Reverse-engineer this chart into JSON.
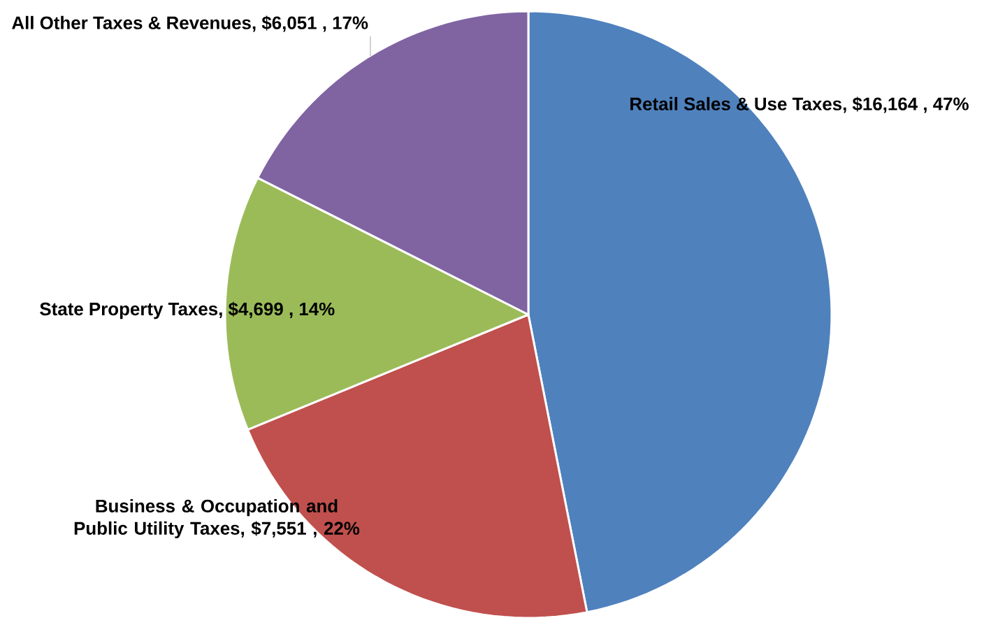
{
  "chart_data": {
    "type": "pie",
    "categories": [
      "Retail Sales & Use Taxes",
      "Business & Occupation and Public Utility Taxes",
      "State Property Taxes",
      "All Other Taxes & Revenues"
    ],
    "values": [
      16164,
      7551,
      4699,
      6051
    ],
    "value_labels": [
      ", $16,164 , 47%",
      ", $7,551 , 22%",
      ", $4,699 , 14%",
      ", $6,051 , 17%"
    ],
    "colors": [
      "#4f81bd",
      "#c0504d",
      "#9bbb59",
      "#8064a2"
    ]
  }
}
